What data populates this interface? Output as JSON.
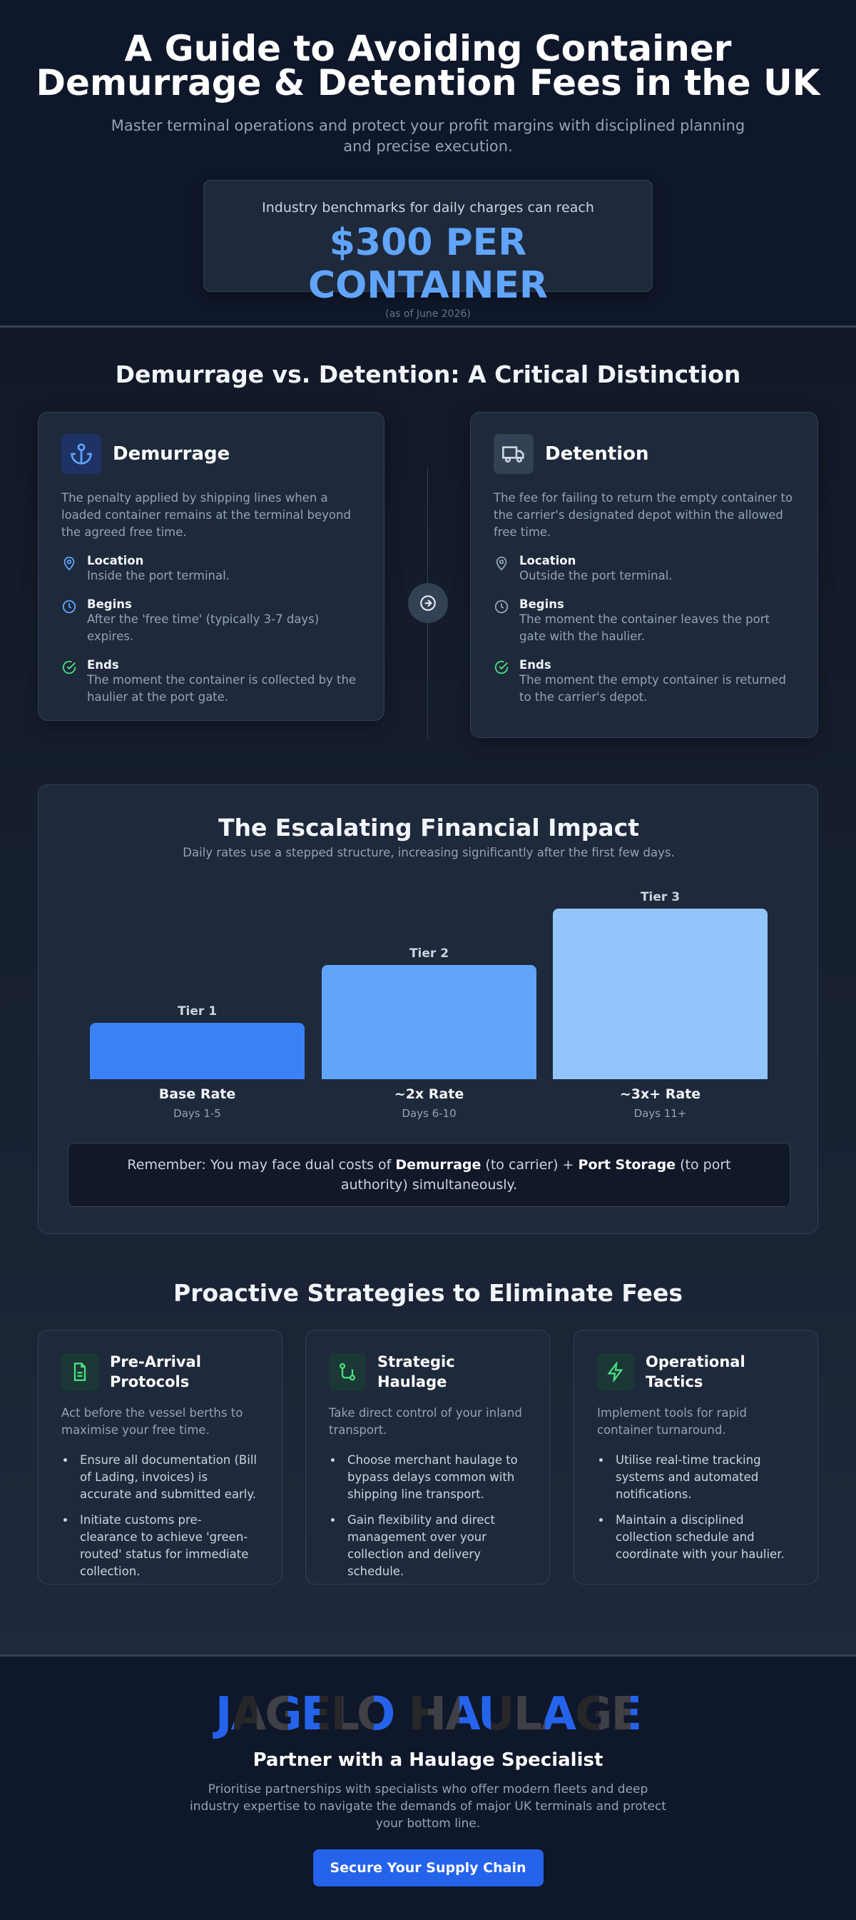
{
  "header": {
    "title": "A Guide to Avoiding Container Demurrage & Detention Fees in the UK",
    "subtitle": "Master terminal operations and protect your profit margins with disciplined planning and precise execution.",
    "benchmark": {
      "intro": "Industry benchmarks for daily charges can reach",
      "amount": "$300 PER CONTAINER",
      "note": "(as of June 2026)"
    }
  },
  "comparison": {
    "title": "Demurrage vs. Detention: A Critical Distinction",
    "cards": [
      {
        "title": "Demurrage",
        "description": "The penalty applied by shipping lines when a loaded container remains at the terminal beyond the agreed free time.",
        "items": [
          {
            "label": "Location",
            "text": "Inside the port terminal."
          },
          {
            "label": "Begins",
            "text": "After the 'free time' (typically 3-7 days) expires."
          },
          {
            "label": "Ends",
            "text": "The moment the container is collected by the haulier at the port gate."
          }
        ]
      },
      {
        "title": "Detention",
        "description": "The fee for failing to return the empty container to the carrier's designated depot within the allowed free time.",
        "items": [
          {
            "label": "Location",
            "text": "Outside the port terminal."
          },
          {
            "label": "Begins",
            "text": "The moment the container leaves the port gate with the haulier."
          },
          {
            "label": "Ends",
            "text": "The moment the empty container is returned to the carrier's depot."
          }
        ]
      }
    ]
  },
  "impact": {
    "title": "The Escalating Financial Impact",
    "subtitle": "Daily rates use a stepped structure, increasing significantly after the first few days.",
    "tiers": [
      {
        "tier": "Tier 1",
        "rate": "Base Rate",
        "days": "Days 1-5"
      },
      {
        "tier": "Tier 2",
        "rate": "~2x Rate",
        "days": "Days 6-10"
      },
      {
        "tier": "Tier 3",
        "rate": "~3x+ Rate",
        "days": "Days 11+"
      }
    ],
    "note": [
      "Remember: You may face dual costs of ",
      "Demurrage",
      " (to carrier) + ",
      "Port Storage",
      " (to port authority) simultaneously."
    ]
  },
  "strategies": {
    "title": "Proactive Strategies to Eliminate Fees",
    "cards": [
      {
        "title": "Pre-Arrival Protocols",
        "description": "Act before the vessel berths to maximise your free time.",
        "bullets": [
          "Ensure all documentation (Bill of Lading, invoices) is accurate and submitted early.",
          "Initiate customs pre-clearance to achieve 'green-routed' status for immediate collection."
        ]
      },
      {
        "title": "Strategic Haulage",
        "description": "Take direct control of your inland transport.",
        "bullets": [
          "Choose merchant haulage to bypass delays common with shipping line transport.",
          "Gain flexibility and direct management over your collection and delivery schedule."
        ]
      },
      {
        "title": "Operational Tactics",
        "description": "Implement tools for rapid container turnaround.",
        "bullets": [
          "Utilise real-time tracking systems and automated notifications.",
          "Maintain a disciplined collection schedule and coordinate with your haulier."
        ]
      }
    ]
  },
  "footer": {
    "logo": "JAGELO HAULAGE",
    "heading": "Partner with a Haulage Specialist",
    "text": "Prioritise partnerships with specialists who offer modern fleets and deep industry expertise to navigate the demands of major UK terminals and protect your bottom line.",
    "button": "Secure Your Supply Chain"
  }
}
